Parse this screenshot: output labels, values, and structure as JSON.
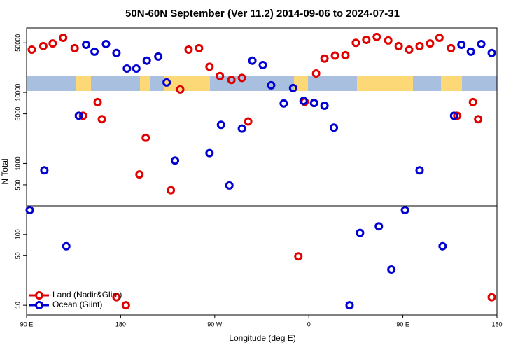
{
  "chart_data": {
    "type": "scatter",
    "title": "50N-60N September (Ver 11.2)   2014-09-06 to 2024-07-31",
    "xlabel": "Longitude (deg E)",
    "ylabel": "N Total",
    "xlim": [
      90,
      540
    ],
    "ylim": [
      7.3,
      81000
    ],
    "log_y": true,
    "legend": "lower left",
    "xticks": [
      {
        "value": 90,
        "label": "90 E"
      },
      {
        "value": 180,
        "label": "180"
      },
      {
        "value": 270,
        "label": "90 W"
      },
      {
        "value": 360,
        "label": "0"
      },
      {
        "value": 450,
        "label": "90 E"
      },
      {
        "value": 540,
        "label": "180"
      }
    ],
    "yticks": [
      10,
      50,
      100,
      500,
      1000,
      5000,
      10000,
      50000
    ],
    "series": [
      {
        "name": "Land (Nadir&Glint)",
        "color": "#e00000",
        "x": [
          95,
          106,
          115,
          125,
          136,
          144,
          158,
          162,
          176,
          185,
          198,
          204,
          228,
          237,
          245,
          255,
          265,
          275,
          286,
          296,
          302,
          350,
          356,
          367,
          375,
          385,
          395,
          405,
          415,
          425,
          436,
          446,
          456,
          466,
          476,
          485,
          496,
          502,
          517,
          522,
          535
        ],
        "values": [
          40000,
          45000,
          49000,
          59000,
          42000,
          4700,
          7300,
          4200,
          13,
          10,
          700,
          2300,
          420,
          11000,
          40000,
          42000,
          23000,
          17000,
          15000,
          16000,
          3900,
          49,
          7400,
          18500,
          30000,
          33000,
          33500,
          50000,
          55000,
          60500,
          54000,
          45000,
          40000,
          45000,
          49000,
          59000,
          42000,
          4700,
          7300,
          4200,
          13
        ]
      },
      {
        "name": "Ocean (Glint)",
        "color": "#0000d0",
        "x": [
          93,
          107,
          128,
          140,
          147,
          155,
          166,
          176,
          186,
          195,
          205,
          216,
          224,
          232,
          265,
          276,
          284,
          296,
          306,
          316,
          324,
          336,
          345,
          355,
          365,
          375,
          384,
          399,
          409,
          427,
          439,
          452,
          466,
          488,
          499,
          506,
          515,
          525,
          535
        ],
        "values": [
          220,
          800,
          68,
          4700,
          47000,
          37500,
          48000,
          36000,
          21700,
          21700,
          28000,
          32000,
          13800,
          1100,
          1400,
          3500,
          490,
          3100,
          28000,
          24300,
          12600,
          7000,
          11500,
          7600,
          7100,
          6500,
          3200,
          10,
          105,
          130,
          32,
          220,
          800,
          68,
          4700,
          47000,
          37500,
          48000,
          36000
        ]
      }
    ]
  }
}
